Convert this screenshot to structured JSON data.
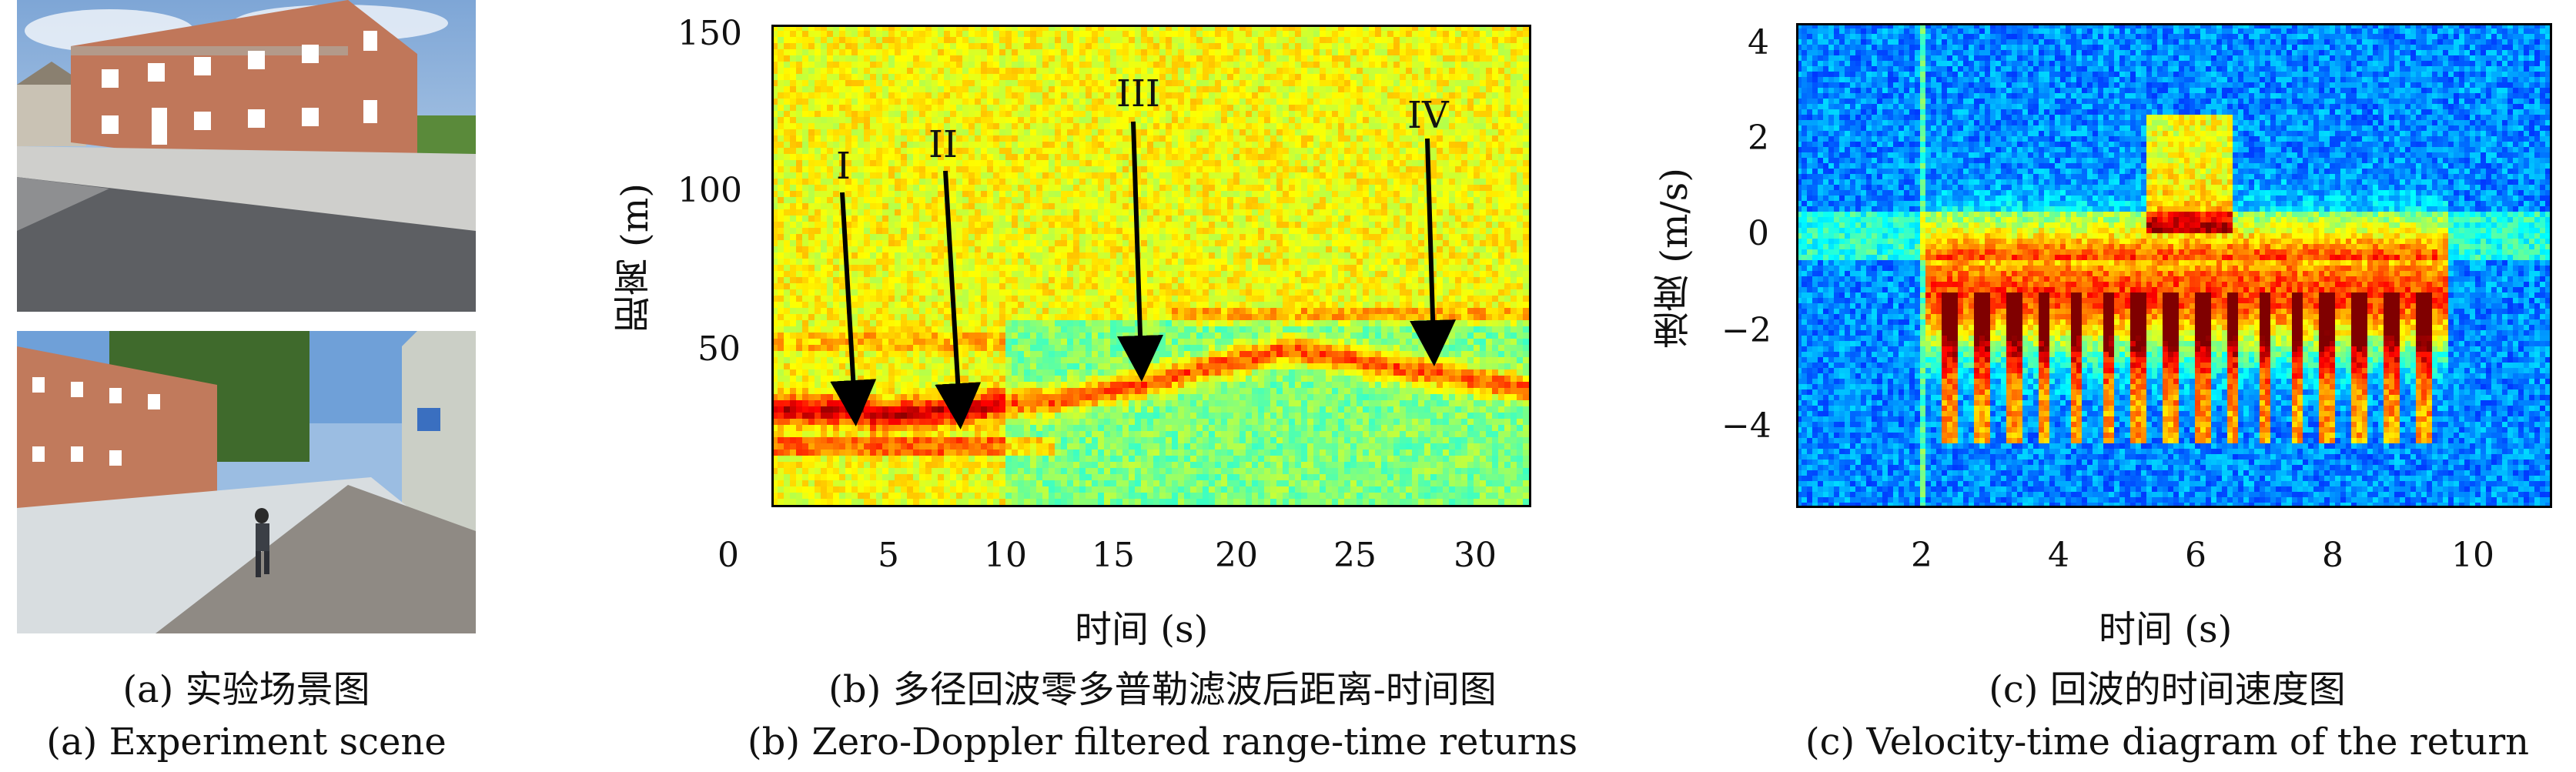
{
  "panel_a": {
    "photo_top_label": "building photo",
    "photo_bottom_label": "street photo with pedestrian",
    "caption_cn": "(a) 实验场景图",
    "caption_en": "(a) Experiment scene"
  },
  "panel_b": {
    "caption_cn": "(b) 多径回波零多普勒滤波后距离-时间图",
    "caption_en": "(b) Zero-Doppler filtered range-time returns",
    "xlabel": "时间 (s)",
    "ylabel": "距离 (m)",
    "annotations": [
      "I",
      "II",
      "III",
      "IV"
    ]
  },
  "panel_c": {
    "caption_cn": "(c) 回波的时间速度图",
    "caption_en": "(c) Velocity-time diagram of the return",
    "xlabel": "时间 (s)",
    "ylabel": "速度 (m/s)"
  },
  "chart_data": [
    {
      "type": "heatmap",
      "title": "",
      "xlabel": "时间 (s)",
      "ylabel": "距离 (m)",
      "xlim": [
        0,
        32.5
      ],
      "ylim": [
        0,
        150
      ],
      "xticks": [
        "0",
        "5",
        "10",
        "15",
        "20",
        "25",
        "30"
      ],
      "yticks": [
        "50",
        "100",
        "150"
      ],
      "annotations": [
        {
          "label": "I",
          "x": 3.5,
          "y": 31
        },
        {
          "label": "II",
          "x": 8.0,
          "y": 30
        },
        {
          "label": "III",
          "x": 16.0,
          "y": 44
        },
        {
          "label": "IV",
          "x": 28.5,
          "y": 48
        }
      ]
    },
    {
      "type": "heatmap",
      "title": "",
      "xlabel": "时间 (s)",
      "ylabel": "速度 (m/s)",
      "xlim": [
        0.2,
        11.0
      ],
      "ylim": [
        -5.7,
        4.3
      ],
      "xticks": [
        "2",
        "4",
        "6",
        "8",
        "10"
      ],
      "yticks": [
        "4",
        "2",
        "0",
        "−2",
        "−4"
      ]
    }
  ]
}
